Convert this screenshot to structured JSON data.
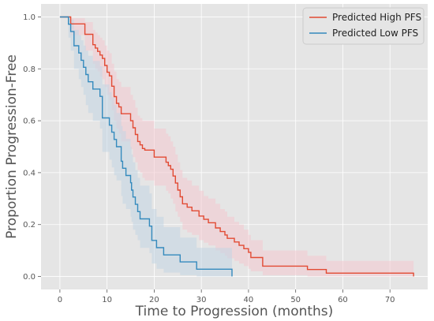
{
  "chart_data": {
    "type": "line",
    "subtype": "kaplan-meier-step",
    "xlabel": "Time to Progression (months)",
    "ylabel": "Proportion Progression-Free",
    "xlim": [
      -4,
      78
    ],
    "ylim": [
      -0.05,
      1.05
    ],
    "xticks": [
      0,
      10,
      20,
      30,
      40,
      50,
      60,
      70
    ],
    "yticks": [
      0.0,
      0.2,
      0.4,
      0.6,
      0.8,
      1.0
    ],
    "xtick_labels": [
      "0",
      "10",
      "20",
      "30",
      "40",
      "50",
      "60",
      "70"
    ],
    "ytick_labels": [
      "0.0",
      "0.2",
      "0.4",
      "0.6",
      "0.8",
      "1.0"
    ],
    "grid": true,
    "legend_position": "top-right",
    "colors": {
      "background": "#e5e5e5",
      "grid": "#ffffff",
      "frame": "#ffffff"
    },
    "series": [
      {
        "name": "Predicted High PFS",
        "color": "#e24a33",
        "band_color": "#f4c9cf",
        "x": [
          0,
          2.3,
          5.3,
          7.0,
          7.5,
          8.0,
          8.5,
          9.0,
          9.5,
          10.0,
          10.5,
          11.0,
          11.5,
          12.0,
          12.5,
          13.0,
          15.0,
          15.5,
          16.0,
          16.5,
          17.0,
          17.5,
          18.0,
          20.0,
          22.5,
          23.0,
          23.5,
          24.0,
          24.5,
          25.0,
          25.5,
          26.0,
          27.0,
          28.0,
          29.5,
          30.5,
          31.5,
          33.0,
          34.0,
          35.0,
          35.5,
          37.0,
          38.0,
          39.0,
          40.0,
          40.5,
          43.0,
          52.5,
          56.5,
          75.0
        ],
        "y": [
          1.0,
          0.973,
          0.933,
          0.893,
          0.88,
          0.867,
          0.853,
          0.84,
          0.813,
          0.787,
          0.773,
          0.733,
          0.693,
          0.667,
          0.653,
          0.627,
          0.6,
          0.573,
          0.547,
          0.52,
          0.507,
          0.493,
          0.487,
          0.46,
          0.44,
          0.427,
          0.413,
          0.387,
          0.36,
          0.333,
          0.307,
          0.28,
          0.267,
          0.253,
          0.233,
          0.22,
          0.207,
          0.187,
          0.173,
          0.16,
          0.147,
          0.133,
          0.12,
          0.107,
          0.093,
          0.073,
          0.04,
          0.027,
          0.013,
          0.0
        ],
        "lower": [
          1.0,
          0.93,
          0.87,
          0.82,
          0.8,
          0.79,
          0.77,
          0.76,
          0.73,
          0.7,
          0.68,
          0.64,
          0.6,
          0.57,
          0.55,
          0.52,
          0.49,
          0.46,
          0.44,
          0.41,
          0.4,
          0.38,
          0.37,
          0.35,
          0.33,
          0.32,
          0.3,
          0.28,
          0.25,
          0.23,
          0.21,
          0.18,
          0.17,
          0.16,
          0.14,
          0.13,
          0.12,
          0.1,
          0.09,
          0.08,
          0.07,
          0.06,
          0.05,
          0.04,
          0.03,
          0.02,
          0.005,
          0.0,
          0.0,
          0.0
        ],
        "upper": [
          1.0,
          0.995,
          0.98,
          0.95,
          0.94,
          0.93,
          0.92,
          0.91,
          0.89,
          0.87,
          0.86,
          0.82,
          0.79,
          0.76,
          0.75,
          0.73,
          0.7,
          0.68,
          0.65,
          0.62,
          0.61,
          0.6,
          0.6,
          0.57,
          0.55,
          0.54,
          0.52,
          0.5,
          0.47,
          0.44,
          0.41,
          0.38,
          0.37,
          0.35,
          0.33,
          0.31,
          0.3,
          0.28,
          0.26,
          0.25,
          0.23,
          0.21,
          0.2,
          0.18,
          0.16,
          0.14,
          0.1,
          0.08,
          0.06,
          0.04
        ]
      },
      {
        "name": "Predicted Low PFS",
        "color": "#348abd",
        "band_color": "#c2d6e4",
        "x": [
          0,
          1.8,
          2.3,
          3.0,
          4.0,
          4.5,
          5.0,
          5.5,
          6.0,
          7.0,
          8.5,
          9.0,
          10.5,
          11.0,
          11.5,
          12.0,
          13.0,
          13.3,
          14.0,
          15.0,
          15.2,
          15.5,
          16.0,
          16.5,
          17.0,
          19.0,
          19.5,
          20.5,
          22.0,
          25.5,
          29.0,
          36.5
        ],
        "y": [
          1.0,
          0.972,
          0.944,
          0.889,
          0.861,
          0.833,
          0.806,
          0.778,
          0.75,
          0.722,
          0.694,
          0.611,
          0.583,
          0.556,
          0.528,
          0.5,
          0.444,
          0.417,
          0.389,
          0.361,
          0.333,
          0.306,
          0.278,
          0.25,
          0.222,
          0.194,
          0.139,
          0.111,
          0.083,
          0.056,
          0.028,
          0.0
        ],
        "lower": [
          1.0,
          0.92,
          0.87,
          0.8,
          0.76,
          0.73,
          0.7,
          0.66,
          0.63,
          0.6,
          0.57,
          0.48,
          0.45,
          0.42,
          0.39,
          0.37,
          0.31,
          0.28,
          0.26,
          0.23,
          0.21,
          0.18,
          0.16,
          0.14,
          0.11,
          0.09,
          0.05,
          0.03,
          0.015,
          0.005,
          0.0,
          0.0
        ],
        "upper": [
          1.0,
          0.995,
          0.99,
          0.95,
          0.93,
          0.91,
          0.89,
          0.87,
          0.85,
          0.83,
          0.81,
          0.74,
          0.71,
          0.69,
          0.66,
          0.63,
          0.58,
          0.56,
          0.53,
          0.5,
          0.47,
          0.44,
          0.41,
          0.38,
          0.35,
          0.32,
          0.26,
          0.23,
          0.19,
          0.15,
          0.11,
          0.08
        ]
      }
    ]
  }
}
